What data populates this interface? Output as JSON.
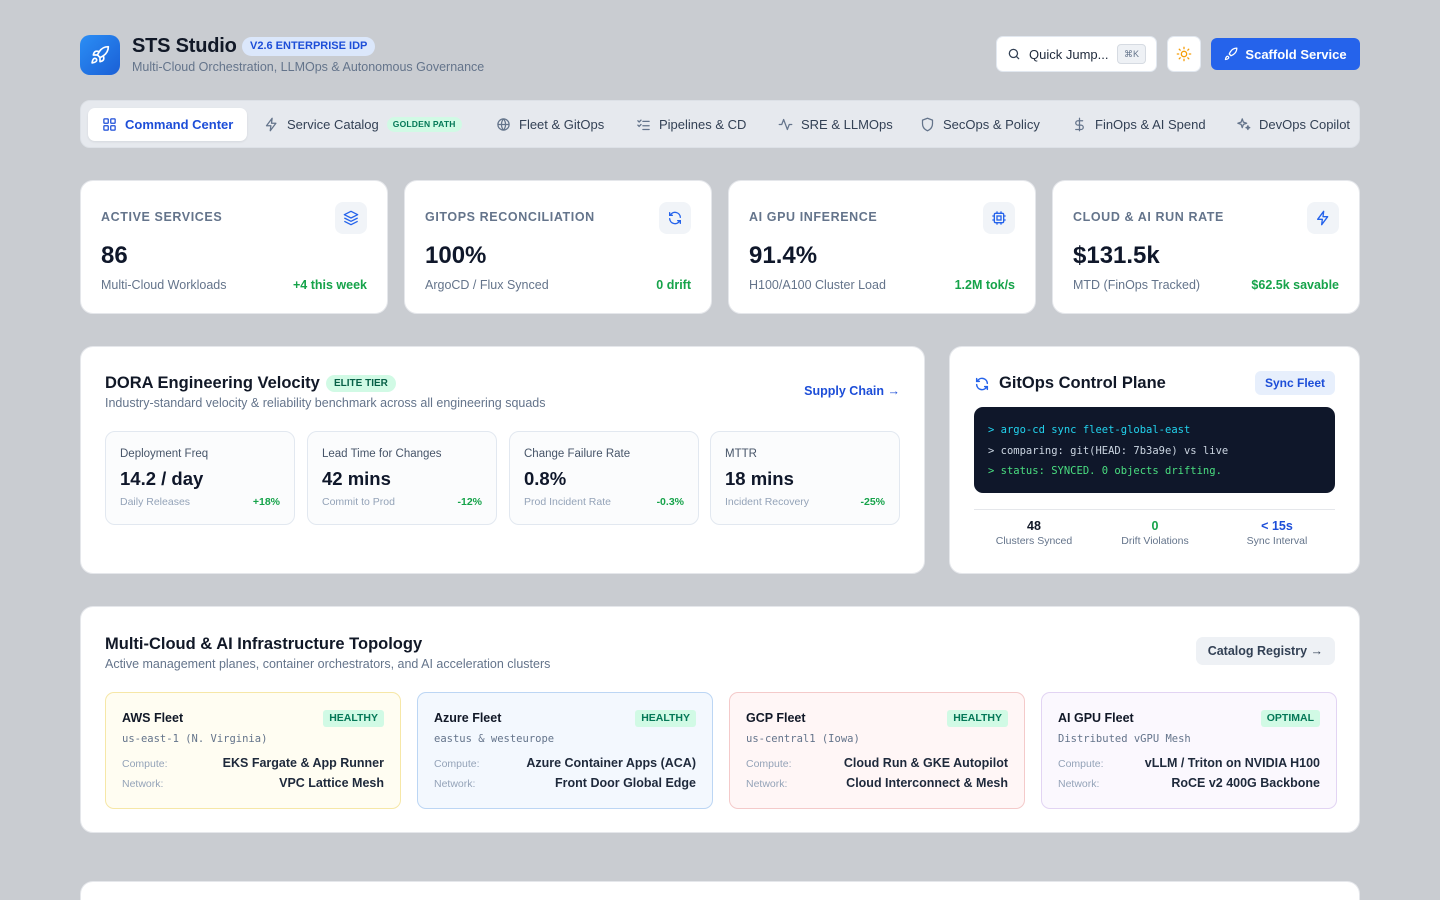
{
  "header": {
    "title": "STS Studio",
    "version": "V2.6 ENTERPRISE IDP",
    "subtitle": "Multi-Cloud Orchestration, LLMOps & Autonomous Governance",
    "quick_jump": "Quick Jump...",
    "shortcut": "⌘K",
    "scaffold_label": "Scaffold Service"
  },
  "tabs": [
    {
      "label": "Command Center",
      "icon": "grid-icon"
    },
    {
      "label": "Service Catalog",
      "icon": "lightning-icon",
      "badge": "GOLDEN PATH"
    },
    {
      "label": "Fleet & GitOps",
      "icon": "globe-icon"
    },
    {
      "label": "Pipelines & CD",
      "icon": "checklist-icon"
    },
    {
      "label": "SRE & LLMOps",
      "icon": "activity-icon"
    },
    {
      "label": "SecOps & Policy",
      "icon": "shield-icon"
    },
    {
      "label": "FinOps & AI Spend",
      "icon": "dollar-icon"
    },
    {
      "label": "DevOps Copilot",
      "icon": "sparkles-icon"
    }
  ],
  "kpis": [
    {
      "label": "ACTIVE SERVICES",
      "value": "86",
      "sub": "Multi-Cloud Workloads",
      "delta": "+4 this week",
      "icon": "layers-icon"
    },
    {
      "label": "GITOPS RECONCILIATION",
      "value": "100%",
      "sub": "ArgoCD / Flux Synced",
      "delta": "0 drift",
      "icon": "refresh-icon"
    },
    {
      "label": "AI GPU INFERENCE",
      "value": "91.4%",
      "sub": "H100/A100 Cluster Load",
      "delta": "1.2M tok/s",
      "icon": "cpu-icon"
    },
    {
      "label": "CLOUD & AI RUN RATE",
      "value": "$131.5k",
      "sub": "MTD (FinOps Tracked)",
      "delta": "$62.5k savable",
      "icon": "bolt-icon"
    }
  ],
  "dora": {
    "title": "DORA Engineering Velocity",
    "badge": "ELITE TIER",
    "subtitle": "Industry-standard velocity & reliability benchmark across all engineering squads",
    "link": "Supply Chain →",
    "metrics": [
      {
        "label": "Deployment Freq",
        "value": "14.2 / day",
        "sub": "Daily Releases",
        "delta": "+18%"
      },
      {
        "label": "Lead Time for Changes",
        "value": "42 mins",
        "sub": "Commit to Prod",
        "delta": "-12%"
      },
      {
        "label": "Change Failure Rate",
        "value": "0.8%",
        "sub": "Prod Incident Rate",
        "delta": "-0.3%"
      },
      {
        "label": "MTTR",
        "value": "18 mins",
        "sub": "Incident Recovery",
        "delta": "-25%"
      }
    ]
  },
  "gitops": {
    "title": "GitOps Control Plane",
    "sync_label": "Sync Fleet",
    "terminal": [
      "> argo-cd sync fleet-global-east",
      "> comparing: git(HEAD: 7b3a9e) vs live",
      "> status: SYNCED. 0 objects drifting."
    ],
    "stats": [
      {
        "value": "48",
        "label": "Clusters Synced"
      },
      {
        "value": "0",
        "label": "Drift Violations"
      },
      {
        "value": "< 15s",
        "label": "Sync Interval"
      }
    ]
  },
  "topology": {
    "title": "Multi-Cloud & AI Infrastructure Topology",
    "subtitle": "Active management planes, container orchestrators, and AI acceleration clusters",
    "registry_label": "Catalog Registry →",
    "compute_label": "Compute:",
    "network_label": "Network:",
    "fleets": [
      {
        "name": "AWS Fleet",
        "status": "HEALTHY",
        "region": "us-east-1 (N. Virginia)",
        "compute": "EKS Fargate & App Runner",
        "network": "VPC Lattice Mesh",
        "bg": "#fffdf2",
        "border": "#f6e7a7"
      },
      {
        "name": "Azure Fleet",
        "status": "HEALTHY",
        "region": "eastus & westeurope",
        "compute": "Azure Container Apps (ACA)",
        "network": "Front Door Global Edge",
        "bg": "#f3f8fe",
        "border": "#bcd6f4"
      },
      {
        "name": "GCP Fleet",
        "status": "HEALTHY",
        "region": "us-central1 (Iowa)",
        "compute": "Cloud Run & GKE Autopilot",
        "network": "Cloud Interconnect & Mesh",
        "bg": "#fff6f6",
        "border": "#f4caca"
      },
      {
        "name": "AI GPU Fleet",
        "status": "OPTIMAL",
        "region": "Distributed vGPU Mesh",
        "compute": "vLLM / Triton on NVIDIA H100",
        "network": "RoCE v2 400G Backbone",
        "bg": "#fbf8fe",
        "border": "#e2d4f3"
      }
    ]
  },
  "colors": {
    "accent": "#2563eb",
    "success": "#16a34a",
    "background": "#c9ccd1"
  }
}
